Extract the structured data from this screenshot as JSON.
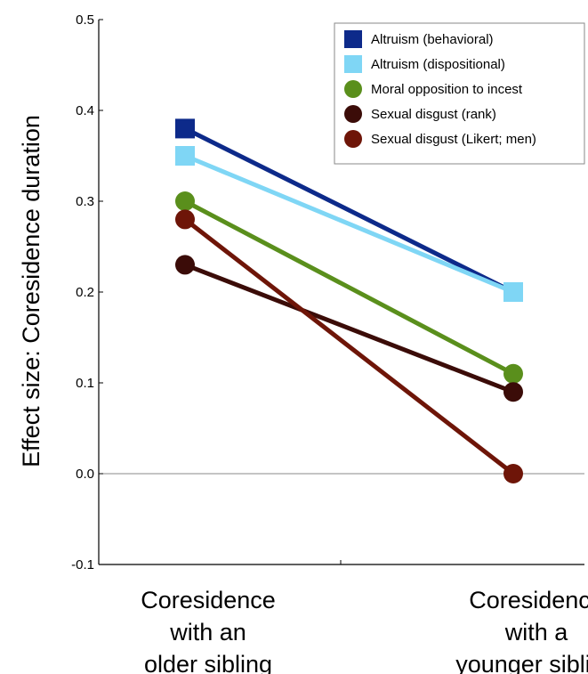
{
  "chart_data": {
    "type": "line",
    "title": "",
    "xlabel": "",
    "ylabel": "Effect size: Coresidence duration",
    "ylim": [
      -0.1,
      0.5
    ],
    "yticks": [
      "-0.1",
      "0.0",
      "0.1",
      "0.2",
      "0.3",
      "0.4",
      "0.5"
    ],
    "categories": [
      [
        "Coresidence",
        "with an",
        "older sibling"
      ],
      [
        "Coresidence",
        "with a",
        "younger sibling"
      ]
    ],
    "grid": false,
    "zero_line": true,
    "legend_position": "top-right",
    "series": [
      {
        "name": "Altruism (behavioral)",
        "marker": "square",
        "color": "#0d2a8a",
        "values": [
          0.38,
          0.2
        ]
      },
      {
        "name": "Altruism (dispositional)",
        "marker": "square",
        "color": "#7fd6f5",
        "values": [
          0.35,
          0.2
        ]
      },
      {
        "name": "Moral opposition to incest",
        "marker": "circle",
        "color": "#5a8f1c",
        "values": [
          0.3,
          0.11
        ]
      },
      {
        "name": "Sexual disgust (rank)",
        "marker": "circle",
        "color": "#3b0c08",
        "values": [
          0.23,
          0.09
        ]
      },
      {
        "name": "Sexual disgust (Likert; men)",
        "marker": "circle",
        "color": "#6e1508",
        "values": [
          0.28,
          0.0
        ]
      }
    ]
  }
}
